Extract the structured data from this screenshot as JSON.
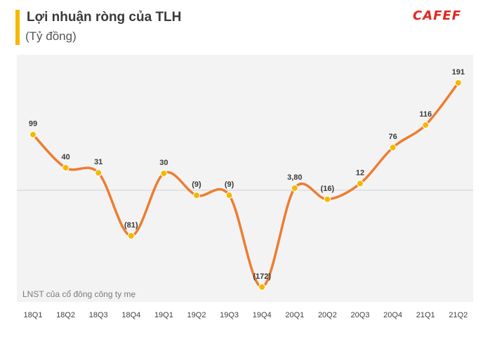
{
  "header": {
    "title": "Lợi nhuận ròng của TLH",
    "subtitle": "(Tỷ đồng)",
    "brand": "CAFEF"
  },
  "note": "LNST của cổ đông công ty mẹ",
  "colors": {
    "line": "#ED7D31",
    "marker": "#F5B800",
    "accent": "#F5B800",
    "brand": "#E0271E"
  },
  "chart_data": {
    "type": "line",
    "title": "Lợi nhuận ròng của TLH",
    "ylabel": "(Tỷ đồng)",
    "xlabel": "",
    "categories": [
      "18Q1",
      "18Q2",
      "18Q3",
      "18Q4",
      "19Q1",
      "19Q2",
      "19Q3",
      "19Q4",
      "20Q1",
      "20Q2",
      "20Q3",
      "20Q4",
      "21Q1",
      "21Q2"
    ],
    "values": [
      99,
      40,
      31,
      -81,
      30,
      -9,
      -9,
      -172,
      3.8,
      -16,
      12,
      76,
      116,
      191
    ],
    "labels": [
      "99",
      "40",
      "31",
      "(81)",
      "30",
      "(9)",
      "(9)",
      "(172)",
      "3,80",
      "(16)",
      "12",
      "76",
      "116",
      "191"
    ],
    "smooth": true,
    "grid": false,
    "ylim": [
      -180,
      200
    ]
  }
}
